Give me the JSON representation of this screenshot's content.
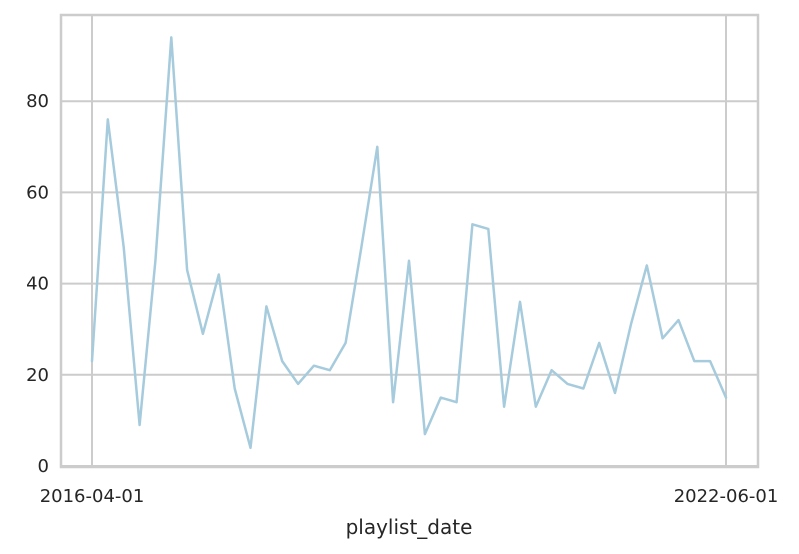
{
  "chart_data": {
    "type": "line",
    "title": "",
    "xlabel": "playlist_date",
    "ylabel": "",
    "x_tick_labels": [
      "2016-04-01",
      "2022-06-01"
    ],
    "y_tick_labels": [
      "0",
      "20",
      "40",
      "60",
      "80"
    ],
    "y_ticks": [
      0,
      20,
      40,
      60,
      80
    ],
    "ylim": [
      0,
      98
    ],
    "grid": true,
    "line_color": "#a6cbdd",
    "series": [
      {
        "values": [
          23,
          76,
          48,
          9,
          45,
          94,
          43,
          29,
          42,
          17,
          4,
          35,
          23,
          18,
          22,
          21,
          27,
          48,
          70,
          14,
          45,
          7,
          15,
          14,
          53,
          52,
          13,
          36,
          13,
          21,
          18,
          17,
          27,
          16,
          31,
          44,
          28,
          32,
          23,
          23,
          15
        ]
      }
    ]
  }
}
